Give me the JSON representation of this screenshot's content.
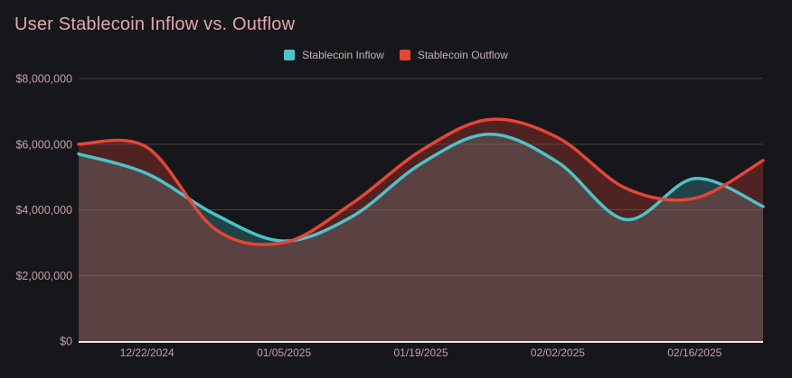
{
  "title": "User Stablecoin Inflow vs. Outflow",
  "legend": [
    {
      "label": "Stablecoin Inflow",
      "color": "#4BC3CA"
    },
    {
      "label": "Stablecoin Outflow",
      "color": "#E64535"
    }
  ],
  "colors": {
    "background": "#16171a",
    "title_text": "#e2a8ad",
    "axis_text": "#c7a0a6",
    "axis_line": "#ece6e8",
    "gridline": "rgba(255,255,255,0.18)",
    "inflow": "#4BC3CA",
    "outflow": "#E64535"
  },
  "chart_data": {
    "type": "area",
    "title": "User Stablecoin Inflow vs. Outflow",
    "x": [
      "12/15/2024",
      "12/22/2024",
      "12/29/2024",
      "01/05/2025",
      "01/12/2025",
      "01/19/2025",
      "01/26/2025",
      "02/02/2025",
      "02/09/2025",
      "02/16/2025",
      "02/23/2025"
    ],
    "series": [
      {
        "id": "inflow",
        "name": "Stablecoin Inflow",
        "color": "#4BC3CA",
        "fill_opacity": 0.25,
        "line_width": 3.5,
        "values": [
          5700000,
          5100000,
          3850000,
          3050000,
          3800000,
          5400000,
          6300000,
          5450000,
          3700000,
          4950000,
          4100000
        ]
      },
      {
        "id": "outflow",
        "name": "Stablecoin Outflow",
        "color": "#E64535",
        "fill_opacity": 0.28,
        "line_width": 3.5,
        "values": [
          6000000,
          5900000,
          3400000,
          3000000,
          4200000,
          5800000,
          6750000,
          6200000,
          4650000,
          4350000,
          5500000
        ]
      }
    ],
    "ylim": [
      0,
      8000000
    ],
    "y_ticks": [
      "$0",
      "$2,000,000",
      "$4,000,000",
      "$6,000,000",
      "$8,000,000"
    ],
    "x_ticks": [
      {
        "index": 1,
        "label": "12/22/2024"
      },
      {
        "index": 3,
        "label": "01/05/2025"
      },
      {
        "index": 5,
        "label": "01/19/2025"
      },
      {
        "index": 7,
        "label": "02/02/2025"
      },
      {
        "index": 9,
        "label": "02/16/2025"
      }
    ],
    "grid": true,
    "legend_position": "top-center",
    "smooth": true
  }
}
